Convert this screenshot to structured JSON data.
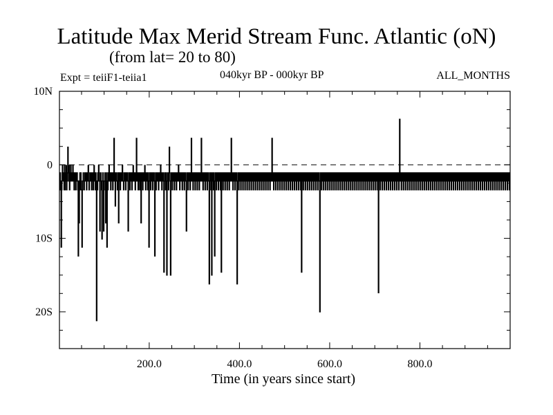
{
  "chart_data": {
    "type": "line",
    "title": "Latitude Max Merid Stream Func. Atlantic (oN)",
    "subtitle": "(from lat= 20 to 80)",
    "annotations": {
      "left": "Expt = teiiF1-teiia1",
      "center": "040kyr BP - 000kyr BP",
      "right": "ALL_MONTHS"
    },
    "xlabel": "Time (in years since start)",
    "ylabel": "",
    "xlim": [
      1,
      1000
    ],
    "ylim": [
      -25,
      10
    ],
    "x_ticks": [
      {
        "value": 200,
        "label": "200.0"
      },
      {
        "value": 400,
        "label": "400.0"
      },
      {
        "value": 600,
        "label": "600.0"
      },
      {
        "value": 800,
        "label": "800.0"
      }
    ],
    "y_ticks": [
      {
        "value": 10,
        "label": "10N"
      },
      {
        "value": 0,
        "label": "0"
      },
      {
        "value": -10,
        "label": "10S"
      },
      {
        "value": -20,
        "label": "20S"
      }
    ],
    "zero_line": true,
    "grid": false,
    "series": [
      {
        "values": [
          -2.2,
          -1.1,
          -3.4,
          -2.2,
          -11.2,
          -3.4,
          -1.1,
          -0.1,
          -2.2,
          -1.1,
          -2.2,
          -3.4,
          -0.1,
          -3.4,
          -1.1,
          -2.2,
          -0.1,
          -3.4,
          -2.2,
          -1.1,
          2.4,
          -1.1,
          -2.2,
          -0.1,
          -3.4,
          -1.1,
          -2.2,
          -0.1,
          -1.1,
          -2.2,
          -1.1,
          -2.2,
          -0.1,
          -2.2,
          -1.1,
          -3.4,
          -2.2,
          -1.1,
          -2.2,
          -3.4,
          -1.1,
          -2.2,
          -1.1,
          -2.2,
          -3.4,
          -12.4,
          -2.2,
          -7.9,
          -2.2,
          -1.1,
          -3.4,
          -1.1,
          -2.2,
          -3.4,
          -11.2,
          -3.4,
          -2.2,
          -1.1,
          -2.2,
          -3.4,
          -2.2,
          -1.1,
          -2.2,
          -1.1,
          -2.2,
          -3.4,
          -1.1,
          -2.2,
          -1.1,
          -0.1,
          -2.2,
          -3.4,
          -2.2,
          -1.1,
          -2.2,
          -1.1,
          -2.2,
          -3.4,
          -1.1,
          -2.2,
          -1.1,
          -3.4,
          -2.2,
          -0.1,
          -1.1,
          -2.2,
          -3.4,
          -1.1,
          -2.2,
          -21.2,
          -2.2,
          -3.4,
          -1.1,
          -2.2,
          -0.1,
          -1.1,
          -2.2,
          -9.0,
          -2.2,
          -1.1,
          -2.2,
          -3.4,
          -10.1,
          -2.2,
          -1.1,
          -2.2,
          -9.0,
          -3.4,
          -2.2,
          -1.1,
          -2.2,
          -7.9,
          -2.2,
          -1.1,
          -11.2,
          -2.2,
          -3.4,
          -1.1,
          -2.2,
          -0.1,
          -2.2,
          -1.1,
          -2.2,
          -3.4,
          -1.1,
          -2.2,
          -1.1,
          -2.2,
          -3.4,
          -1.1,
          -2.2,
          3.6,
          -1.1,
          -2.2,
          -5.6,
          -1.1,
          -2.2,
          -1.1,
          -2.2,
          -3.4,
          -2.2,
          -1.1,
          -7.9,
          -2.2,
          -1.1,
          -2.2,
          -3.4,
          -1.1,
          -2.2,
          -1.1,
          -2.2,
          -0.1,
          -1.1,
          -2.2,
          -3.4,
          -2.2,
          -1.1,
          -2.2,
          -1.1,
          -3.4,
          -2.2,
          -1.1,
          -2.2,
          -1.1,
          -2.2,
          -9.0,
          -2.2,
          -1.1,
          -2.2,
          -3.4,
          -1.1,
          -2.2,
          -1.1,
          -2.2,
          -3.4,
          -1.1,
          -2.2,
          -0.1,
          -1.1,
          -2.2,
          -1.1,
          -2.2,
          -3.4,
          -1.1,
          -2.2,
          3.6,
          -2.2,
          -1.1,
          -2.2,
          -3.4,
          -1.1,
          -2.2,
          -1.1,
          -3.4,
          -2.2,
          -1.1,
          -7.9,
          -2.2,
          -1.1,
          -2.2,
          -3.4,
          -1.1,
          -2.2,
          -1.1,
          -2.2,
          -0.1,
          -2.2,
          -3.4,
          -1.1,
          -2.2,
          -1.1,
          -2.2,
          -3.4,
          -1.1,
          -2.2,
          -11.2,
          -2.2,
          -1.1,
          -2.2,
          -3.4,
          -1.1,
          -2.2,
          -1.1,
          -2.2,
          -3.4,
          -1.1,
          -2.2,
          -1.1,
          -2.2,
          -12.4,
          -2.2,
          -1.1,
          -3.4,
          -2.2,
          -1.1,
          -2.2,
          -1.1,
          -2.2,
          -3.4,
          -1.1,
          -2.2,
          -1.1,
          -2.2,
          -0.1,
          -1.1,
          -2.2,
          -3.4,
          -1.1,
          -2.2,
          -1.1,
          -2.2,
          -14.6,
          -2.2,
          -1.1,
          -2.2,
          -3.4,
          -1.1,
          -2.2,
          -15.0,
          -2.2,
          -1.1,
          -2.2,
          -3.4,
          -1.1,
          2.4,
          -1.1,
          -2.2,
          -15.0,
          -2.2,
          -1.1,
          -2.2,
          -3.4,
          -1.1,
          -2.2,
          -1.1,
          -2.2,
          -3.4,
          -1.1,
          -2.2,
          -1.1,
          -2.2,
          -3.4,
          -1.1,
          -2.2,
          -1.1,
          -2.2,
          -0.1,
          -2.2,
          -1.1,
          -3.4,
          -2.2,
          -1.1,
          -2.2,
          -1.1,
          -2.2,
          -3.4,
          -1.1,
          -2.2,
          -1.1,
          -2.2,
          -3.4,
          -1.1,
          -2.2,
          -1.1,
          -2.2,
          -9.0,
          -2.2,
          -1.1,
          -2.2,
          -3.4,
          -1.1,
          -2.2,
          -1.1,
          -2.2,
          -3.4,
          -1.1,
          -2.2,
          3.6,
          -2.2,
          -1.1,
          -2.2,
          -3.4,
          -1.1,
          -2.2,
          -1.1,
          -2.2,
          -3.4,
          -1.1,
          -2.2,
          -1.1,
          -2.2,
          -3.4,
          -1.1,
          -2.2,
          -1.1,
          -2.2,
          -3.4,
          -1.1,
          -2.2,
          -1.1,
          -2.2,
          3.6,
          -2.2,
          -1.1,
          -2.2,
          -3.4,
          -1.1,
          -2.2,
          -1.1,
          -2.2,
          -3.4,
          -1.1,
          -2.2,
          -1.1,
          -2.2,
          -3.4,
          -1.1,
          -2.2,
          -1.1,
          -2.2,
          -16.2,
          -2.2,
          -1.1,
          -2.2,
          -3.4,
          -1.1,
          -15.0,
          -2.2,
          -1.1,
          -2.2,
          -3.4,
          -1.1,
          -2.2,
          -12.4,
          -2.2,
          -1.1,
          -2.2,
          -3.4,
          -1.1,
          -2.2,
          -1.1,
          -2.2,
          -3.4,
          -1.1,
          -2.2,
          -1.1,
          -2.2,
          -3.4,
          -1.1,
          -14.6,
          -2.2,
          -1.1,
          -2.2,
          -3.4,
          -1.1,
          -2.2,
          -1.1,
          -2.2,
          -3.4,
          -1.1,
          -2.2,
          -1.1,
          -2.2,
          -3.4,
          -1.1,
          -2.2,
          -1.1,
          -2.2,
          -3.4,
          -1.1,
          -2.2,
          -1.1,
          -2.2,
          3.6,
          -2.2,
          -1.1,
          -2.2,
          -3.4,
          -1.1,
          -2.2,
          -1.1,
          -2.2,
          -3.4,
          -1.1,
          -2.2,
          -1.1,
          -2.2,
          -16.2,
          -2.2,
          -1.1,
          -2.2,
          -3.4,
          -1.1,
          -2.2,
          -1.1,
          -2.2,
          -3.4,
          -1.1,
          -2.2,
          -1.1,
          -2.2,
          -3.4,
          -1.1,
          -2.2,
          -1.1,
          -2.2,
          -3.4,
          -1.1,
          -2.2,
          -1.1,
          -2.2,
          -3.4,
          -1.1,
          -2.2,
          -1.1,
          -2.2,
          -3.4,
          -1.1,
          -2.2,
          -1.1,
          -2.2,
          -3.4,
          -1.1,
          -2.2,
          -1.1,
          -2.2,
          -3.4,
          -1.1,
          -2.2,
          -1.1,
          -2.2,
          -3.4,
          -1.1,
          -2.2,
          -1.1,
          -2.2,
          -3.4,
          -1.1,
          -2.2,
          -1.1,
          -2.2,
          -3.4,
          -1.1,
          -2.2,
          -1.1,
          -2.2,
          -3.4,
          -1.1,
          -2.2,
          -1.1,
          -2.2,
          -3.4,
          -1.1,
          -2.2,
          -1.1,
          -2.2,
          -3.4,
          -1.1,
          -2.2,
          -1.1,
          -2.2,
          -3.4,
          -1.1,
          -2.2,
          -1.1,
          -2.2,
          -3.4,
          -1.1,
          -2.2,
          -1.1,
          -2.2,
          3.6,
          -2.2,
          -1.1,
          -2.2,
          -3.4,
          -1.1,
          -2.2,
          -1.1,
          -2.2,
          -3.4,
          -1.1,
          -2.2,
          -1.1,
          -2.2,
          -3.4,
          -1.1,
          -2.2,
          -1.1,
          -2.2,
          -3.4,
          -1.1,
          -2.2,
          -1.1,
          -2.2,
          -3.4,
          -1.1,
          -2.2,
          -1.1,
          -2.2,
          -3.4,
          -1.1,
          -2.2,
          -1.1,
          -2.2,
          -3.4,
          -1.1,
          -2.2,
          -1.1,
          -2.2,
          -3.4,
          -1.1,
          -2.2,
          -1.1,
          -2.2,
          -3.4,
          -1.1,
          -2.2,
          -1.1,
          -2.2,
          -3.4,
          -1.1,
          -2.2,
          -1.1,
          -2.2,
          -3.4,
          -1.1,
          -2.2,
          -1.1,
          -2.2,
          -3.4,
          -1.1,
          -2.2,
          -1.1,
          -2.2,
          -3.4,
          -1.1,
          -2.2,
          -1.1,
          -2.2,
          -3.4,
          -1.1,
          -14.6,
          -2.2,
          -1.1,
          -2.2,
          -3.4,
          -1.1,
          -2.2,
          -1.1,
          -2.2,
          -3.4,
          -1.1,
          -2.2,
          -1.1,
          -2.2,
          -3.4,
          -1.1,
          -2.2,
          -1.1,
          -2.2,
          -3.4,
          -1.1,
          -2.2,
          -1.1,
          -2.2,
          -3.4,
          -1.1,
          -2.2,
          -1.1,
          -2.2,
          -3.4,
          -1.1,
          -2.2,
          -1.1,
          -2.2,
          -3.4,
          -1.1,
          -2.2,
          -1.1,
          -2.2,
          -3.4,
          -1.1,
          -2.2,
          -1.1,
          -2.2,
          -20.0,
          -2.2,
          -1.1,
          -2.2,
          -3.4,
          -1.1,
          -2.2,
          -1.1,
          -2.2,
          -3.4,
          -1.1,
          -2.2,
          -1.1,
          -2.2,
          -3.4,
          -1.1,
          -2.2,
          -1.1,
          -2.2,
          -3.4,
          -1.1,
          -2.2,
          -1.1,
          -2.2,
          -3.4,
          -1.1,
          -2.2,
          -1.1,
          -2.2,
          -3.4,
          -1.1,
          -2.2,
          -1.1,
          -2.2,
          -3.4,
          -1.1,
          -2.2,
          -1.1,
          -2.2,
          -3.4,
          -1.1,
          -2.2,
          -1.1,
          -2.2,
          -3.4,
          -1.1,
          -2.2,
          -1.1,
          -2.2,
          -3.4,
          -1.1,
          -2.2,
          -1.1,
          -2.2,
          -3.4,
          -1.1,
          -2.2,
          -1.1,
          -2.2,
          -3.4,
          -1.1,
          -2.2,
          -1.1,
          -2.2,
          -3.4,
          -1.1,
          -2.2,
          -1.1,
          -2.2,
          -3.4,
          -1.1,
          -2.2,
          -1.1,
          -2.2,
          -3.4,
          -1.1,
          -2.2,
          -1.1,
          -2.2,
          -3.4,
          -1.1,
          -2.2,
          -1.1,
          -2.2,
          -3.4,
          -1.1,
          -2.2,
          -1.1,
          -2.2,
          -3.4,
          -1.1,
          -2.2,
          -1.1,
          -2.2,
          -3.4,
          -1.1,
          -2.2,
          -1.1,
          -2.2,
          -3.4,
          -1.1,
          -2.2,
          -1.1,
          -2.2,
          -3.4,
          -1.1,
          -2.2,
          -1.1,
          -2.2,
          -3.4,
          -1.1,
          -2.2,
          -1.1,
          -2.2,
          -3.4,
          -1.1,
          -2.2,
          -1.1,
          -2.2,
          -3.4,
          -1.1,
          -2.2,
          -1.1,
          -2.2,
          -3.4,
          -1.1,
          -2.2,
          -1.1,
          -2.2,
          -3.4,
          -1.1,
          -2.2,
          -1.1,
          -2.2,
          -3.4,
          -1.1,
          -2.2,
          -1.1,
          -2.2,
          -3.4,
          -1.1,
          -17.4,
          -2.2,
          -1.1,
          -2.2,
          -3.4,
          -1.1,
          -2.2,
          -1.1,
          -2.2,
          -3.4,
          -1.1,
          -2.2,
          -1.1,
          -2.2,
          -3.4,
          -1.1,
          -2.2,
          -1.1,
          -2.2,
          -3.4,
          -1.1,
          -2.2,
          -1.1,
          -2.2,
          -3.4,
          -1.1,
          -2.2,
          -1.1,
          -2.2,
          -3.4,
          -1.1,
          -2.2,
          -1.1,
          -2.2,
          -3.4,
          -1.1,
          -2.2,
          -1.1,
          -2.2,
          -3.4,
          -1.1,
          -2.2,
          -1.1,
          -2.2,
          -3.4,
          -1.1,
          -2.2,
          -1.1,
          -2.2,
          -3.4,
          -1.1,
          6.2,
          -2.2,
          -1.1,
          -2.2,
          -3.4,
          -1.1,
          -2.2,
          -1.1,
          -2.2,
          -3.4,
          -1.1,
          -2.2,
          -1.1,
          -2.2,
          -3.4,
          -1.1,
          -2.2,
          -1.1,
          -2.2,
          -3.4,
          -1.1,
          -2.2,
          -1.1,
          -2.2,
          -3.4,
          -1.1,
          -2.2,
          -1.1,
          -2.2,
          -3.4,
          -1.1,
          -2.2,
          -1.1,
          -2.2,
          -3.4,
          -1.1,
          -2.2,
          -1.1,
          -2.2,
          -3.4,
          -1.1,
          -2.2,
          -1.1,
          -2.2,
          -3.4,
          -1.1,
          -2.2,
          -1.1,
          -2.2,
          -3.4,
          -1.1,
          -2.2,
          -1.1,
          -2.2,
          -3.4,
          -1.1,
          -2.2,
          -1.1,
          -2.2,
          -3.4,
          -1.1,
          -2.2,
          -1.1,
          -2.2,
          -3.4,
          -1.1,
          -2.2,
          -1.1,
          -2.2,
          -3.4,
          -1.1,
          -2.2,
          -1.1,
          -2.2,
          -3.4,
          -1.1,
          -2.2,
          -1.1,
          -2.2,
          -3.4,
          -1.1,
          -2.2,
          -1.1,
          -2.2,
          -3.4,
          -1.1,
          -2.2,
          -1.1,
          -2.2,
          -3.4,
          -1.1,
          -2.2,
          -1.1,
          -2.2,
          -3.4,
          -1.1,
          -2.2,
          -1.1,
          -2.2,
          -3.4,
          -1.1,
          -2.2,
          -1.1,
          -2.2,
          -3.4,
          -1.1,
          -2.2,
          -1.1,
          -2.2,
          -3.4,
          -1.1,
          -2.2,
          -1.1,
          -2.2,
          -3.4,
          -1.1,
          -2.2,
          -1.1,
          -2.2,
          -3.4,
          -1.1,
          -2.2,
          -1.1,
          -2.2,
          -3.4,
          -1.1,
          -2.2,
          -1.1,
          -2.2,
          -3.4,
          -1.1,
          -2.2,
          -1.1,
          -2.2,
          -3.4,
          -1.1,
          -2.2,
          -1.1,
          -2.2,
          -3.4,
          -1.1,
          -2.2,
          -1.1,
          -2.2,
          -3.4,
          -1.1,
          -2.2,
          -1.1,
          -2.2,
          -3.4,
          -1.1,
          -2.2,
          -1.1,
          -2.2,
          -3.4,
          -1.1,
          -2.2,
          -1.1,
          -2.2,
          -3.4,
          -1.1,
          -2.2,
          -1.1,
          -2.2,
          -3.4,
          -1.1,
          -2.2,
          -1.1,
          -2.2,
          -3.4,
          -1.1,
          -2.2,
          -1.1,
          -2.2,
          -3.4,
          -1.1,
          -2.2,
          -1.1,
          -2.2,
          -3.4,
          -1.1,
          -2.2,
          -1.1,
          -2.2,
          -3.4,
          -1.1,
          -2.2,
          -1.1,
          -2.2,
          -3.4,
          -1.1,
          -2.2,
          -1.1,
          -2.2,
          -3.4,
          -1.1,
          -2.2,
          -1.1,
          -2.2,
          -3.4,
          -1.1,
          -2.2,
          -1.1,
          -2.2,
          -3.4,
          -1.1,
          -2.2,
          -1.1,
          -2.2,
          -3.4,
          -1.1,
          -2.2,
          -1.1,
          -2.2,
          -3.4,
          -1.1,
          -2.2,
          -1.1,
          -2.2,
          -3.4,
          -1.1,
          -2.2,
          -1.1,
          -2.2,
          -3.4,
          -1.1,
          -2.2,
          -1.1,
          -2.2,
          -3.4,
          -1.1,
          -2.2,
          -1.1,
          -2.2,
          -3.4,
          -1.1,
          -2.2,
          -1.1,
          -2.2,
          -3.4,
          -1.1,
          -2.2,
          -1.1,
          -2.2,
          -3.4,
          -1.1,
          -2.2,
          -1.1,
          -2.2,
          -3.4,
          -1.1,
          -2.2,
          -1.1,
          -2.2,
          -3.4,
          -1.1,
          -2.2,
          -1.1,
          -2.2,
          -3.4,
          -1.1,
          -2.2,
          -1.1,
          -2.2,
          -3.4,
          -1.1
        ]
      }
    ]
  }
}
